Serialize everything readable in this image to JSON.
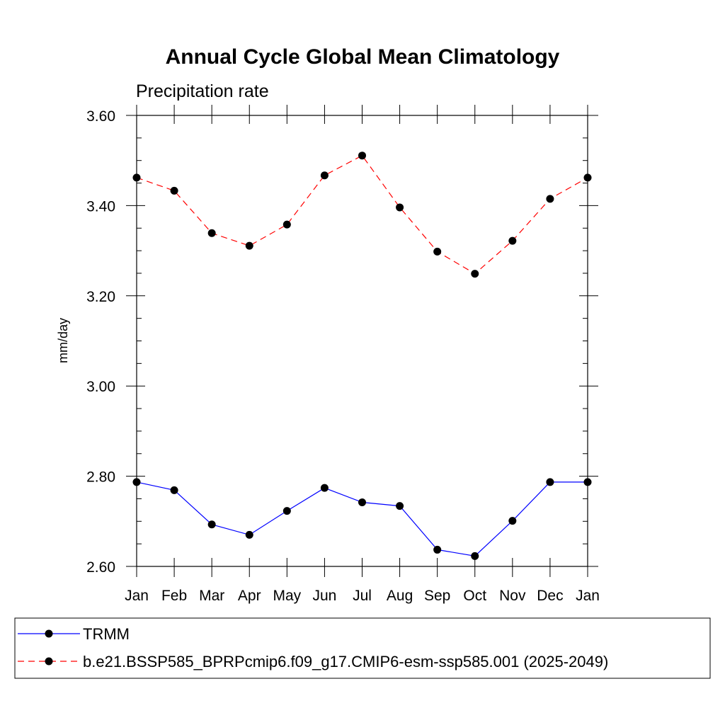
{
  "chart_data": {
    "type": "line",
    "title": "Annual Cycle Global Mean Climatology",
    "subtitle": "Precipitation rate",
    "xlabel": "",
    "ylabel": "mm/day",
    "categories": [
      "Jan",
      "Feb",
      "Mar",
      "Apr",
      "May",
      "Jun",
      "Jul",
      "Aug",
      "Sep",
      "Oct",
      "Nov",
      "Dec",
      "Jan"
    ],
    "ylim": [
      2.6,
      3.6
    ],
    "yticks": [
      "2.60",
      "2.80",
      "3.00",
      "3.20",
      "3.40",
      "3.60"
    ],
    "grid": false,
    "legend_position": "bottom",
    "series": [
      {
        "name": "TRMM",
        "color": "#0000ff",
        "line_style": "solid",
        "marker": "circle",
        "values": [
          2.787,
          2.769,
          2.693,
          2.67,
          2.723,
          2.774,
          2.742,
          2.734,
          2.637,
          2.623,
          2.701,
          2.787,
          2.787
        ]
      },
      {
        "name": "b.e21.BSSP585_BPRPcmip6.f09_g17.CMIP6-esm-ssp585.001 (2025-2049)",
        "color": "#ff0000",
        "line_style": "dashed",
        "marker": "circle",
        "values": [
          3.462,
          3.433,
          3.339,
          3.311,
          3.358,
          3.467,
          3.511,
          3.396,
          3.298,
          3.249,
          3.322,
          3.415,
          3.462
        ]
      }
    ]
  }
}
